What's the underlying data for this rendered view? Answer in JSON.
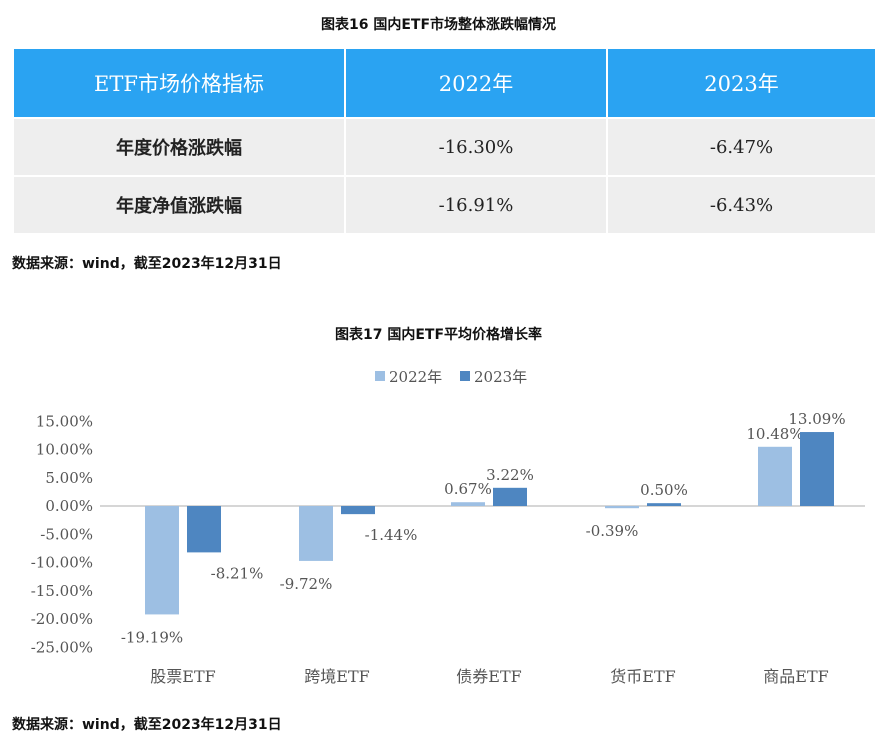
{
  "table_section": {
    "caption": "图表16  国内ETF市场整体涨跌幅情况",
    "headers": [
      "ETF市场价格指标",
      "2022年",
      "2023年"
    ],
    "rows": [
      {
        "label": "年度价格涨跌幅",
        "v2022": "-16.30%",
        "v2023": "-6.47%"
      },
      {
        "label": "年度净值涨跌幅",
        "v2022": "-16.91%",
        "v2023": "-6.43%"
      }
    ],
    "source": "数据来源：wind，截至2023年12月31日"
  },
  "chart_section": {
    "caption": "图表17 国内ETF平均价格增长率",
    "source": "数据来源：wind，截至2023年12月31日"
  },
  "chart_data": {
    "type": "bar",
    "categories": [
      "股票ETF",
      "跨境ETF",
      "债券ETF",
      "货币ETF",
      "商品ETF"
    ],
    "series": [
      {
        "name": "2022年",
        "color": "#9dbfe3",
        "values": [
          -19.19,
          -9.72,
          0.67,
          -0.39,
          10.48
        ],
        "labels": [
          "-19.19%",
          "-9.72%",
          "0.67%",
          "-0.39%",
          "10.48%"
        ]
      },
      {
        "name": "2023年",
        "color": "#4e86c1",
        "values": [
          -8.21,
          -1.44,
          3.22,
          0.5,
          13.09
        ],
        "labels": [
          "-8.21%",
          "-1.44%",
          "3.22%",
          "0.50%",
          "13.09%"
        ]
      }
    ],
    "yticks": [
      "15.00%",
      "10.00%",
      "5.00%",
      "0.00%",
      "-5.00%",
      "-10.00%",
      "-15.00%",
      "-20.00%",
      "-25.00%"
    ],
    "ytick_values": [
      15,
      10,
      5,
      0,
      -5,
      -10,
      -15,
      -20,
      -25
    ],
    "ylim": [
      -25,
      15
    ],
    "legend_position": "top",
    "grid": false
  }
}
